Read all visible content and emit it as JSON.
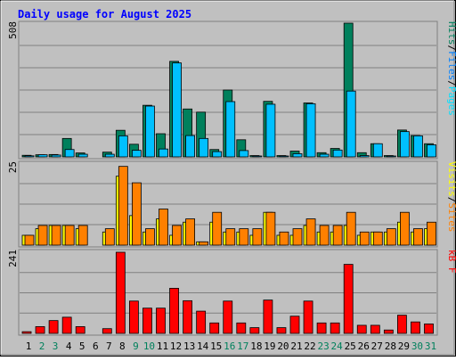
{
  "title": "Daily usage for August 2025",
  "labels": {
    "y_max_top": "508",
    "y_max_mid": "25",
    "y_max_bottom": "241",
    "right_top_pages": "Pages",
    "right_top_files": "Files",
    "right_top_hits": "Hits",
    "right_top_sep": "/",
    "right_mid_sites": "Sites",
    "right_mid_visits": "Visits",
    "right_mid_sep": "/",
    "right_bottom": "kB F"
  },
  "colors": {
    "background": "#c0c0c0",
    "title": "#0000ff",
    "hits": "#00805c",
    "files": "#00c0ff",
    "pages": "#00e0ff",
    "visits": "#ffff00",
    "sites": "#ff8000",
    "kbf": "#ff0000",
    "weekend_label": "#00805c",
    "weekday_label": "#000000"
  },
  "chart_data": [
    {
      "type": "bar",
      "panel": "hits-files",
      "ylabel": "508",
      "ylim": [
        0,
        508
      ],
      "categories": [
        "1",
        "2",
        "3",
        "4",
        "5",
        "6",
        "7",
        "8",
        "9",
        "10",
        "11",
        "12",
        "13",
        "14",
        "15",
        "16",
        "17",
        "18",
        "19",
        "20",
        "21",
        "22",
        "23",
        "24",
        "25",
        "26",
        "27",
        "28",
        "29",
        "30",
        "31"
      ],
      "weekend_days": [
        "2",
        "3",
        "9",
        "10",
        "16",
        "17",
        "23",
        "24",
        "30",
        "31"
      ],
      "series": [
        {
          "name": "Hits",
          "values": [
            6,
            8,
            9,
            70,
            15,
            0,
            18,
            101,
            48,
            196,
            88,
            363,
            182,
            170,
            28,
            254,
            65,
            5,
            211,
            5,
            22,
            205,
            16,
            32,
            508,
            16,
            50,
            5,
            102,
            81,
            50
          ]
        },
        {
          "name": "Files",
          "values": [
            4,
            8,
            7,
            28,
            10,
            0,
            10,
            80,
            25,
            193,
            30,
            357,
            81,
            70,
            20,
            210,
            24,
            3,
            200,
            3,
            12,
            202,
            10,
            26,
            250,
            5,
            50,
            3,
            96,
            80,
            46
          ]
        }
      ]
    },
    {
      "type": "bar",
      "panel": "visits-sites",
      "ylabel": "25",
      "ylim": [
        0,
        25
      ],
      "categories": [
        "1",
        "2",
        "3",
        "4",
        "5",
        "6",
        "7",
        "8",
        "9",
        "10",
        "11",
        "12",
        "13",
        "14",
        "15",
        "16",
        "17",
        "18",
        "19",
        "20",
        "21",
        "22",
        "23",
        "24",
        "25",
        "26",
        "27",
        "28",
        "29",
        "30",
        "31"
      ],
      "series": [
        {
          "name": "Visits",
          "values": [
            3,
            5,
            6,
            6,
            5,
            0,
            4,
            21,
            9,
            4,
            8,
            3,
            7,
            1,
            7,
            4,
            4,
            3,
            10,
            3,
            3,
            6,
            4,
            4,
            6,
            3,
            4,
            4,
            7,
            4,
            5
          ]
        },
        {
          "name": "Sites",
          "values": [
            3,
            6,
            6,
            6,
            6,
            0,
            5,
            24,
            19,
            5,
            11,
            6,
            8,
            1,
            10,
            5,
            5,
            5,
            10,
            4,
            5,
            8,
            6,
            6,
            10,
            4,
            4,
            5,
            10,
            5,
            7
          ]
        }
      ]
    },
    {
      "type": "bar",
      "panel": "kbf",
      "ylabel": "241",
      "ylim": [
        0,
        241
      ],
      "categories": [
        "1",
        "2",
        "3",
        "4",
        "5",
        "6",
        "7",
        "8",
        "9",
        "10",
        "11",
        "12",
        "13",
        "14",
        "15",
        "16",
        "17",
        "18",
        "19",
        "20",
        "21",
        "22",
        "23",
        "24",
        "25",
        "26",
        "27",
        "28",
        "29",
        "30",
        "31"
      ],
      "series": [
        {
          "name": "kB F",
          "values": [
            5,
            20,
            38,
            48,
            20,
            0,
            14,
            241,
            96,
            75,
            75,
            134,
            97,
            66,
            31,
            96,
            31,
            17,
            99,
            17,
            51,
            96,
            31,
            31,
            205,
            24,
            24,
            10,
            54,
            34,
            28
          ]
        }
      ]
    }
  ]
}
